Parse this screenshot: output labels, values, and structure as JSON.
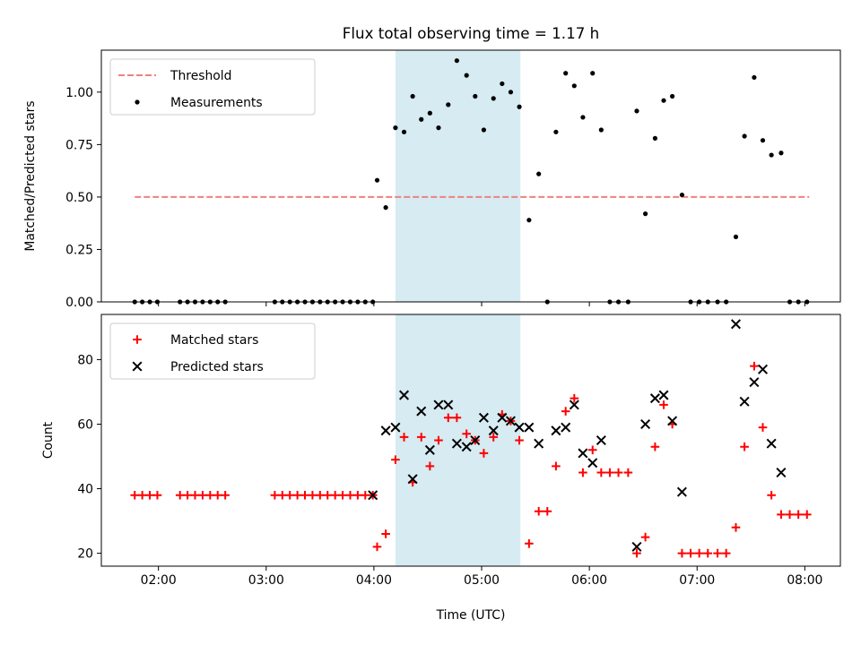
{
  "chart_data": {
    "title": "Flux total observing time = 1.17 h",
    "xlabel": "Time (UTC)",
    "xlim": [
      1.47,
      8.33
    ],
    "x_ticks": [
      {
        "value": 2,
        "label": "02:00"
      },
      {
        "value": 3,
        "label": "03:00"
      },
      {
        "value": 4,
        "label": "04:00"
      },
      {
        "value": 5,
        "label": "05:00"
      },
      {
        "value": 6,
        "label": "06:00"
      },
      {
        "value": 7,
        "label": "07:00"
      },
      {
        "value": 8,
        "label": "08:00"
      }
    ],
    "shaded_region": {
      "x": [
        4.2,
        5.36
      ],
      "color": "#add8e6"
    },
    "panels": [
      {
        "type": "scatter",
        "ylabel": "Matched/Predicted stars",
        "ylim": [
          0,
          1.2
        ],
        "y_ticks": [
          0,
          0.25,
          0.5,
          0.75,
          1.0
        ],
        "y_tick_labels": [
          "0.00",
          "0.25",
          "0.50",
          "0.75",
          "1.00"
        ],
        "legend_position": "upper left",
        "series": [
          {
            "name": "Threshold",
            "kind": "dashed-line",
            "color": "#f08080",
            "x": [
              1.78,
              8.04
            ],
            "y": [
              0.5,
              0.5
            ]
          },
          {
            "name": "Measurements",
            "kind": "dot",
            "color": "#000000",
            "points": [
              [
                1.78,
                0
              ],
              [
                1.85,
                0
              ],
              [
                1.92,
                0
              ],
              [
                1.99,
                0
              ],
              [
                2.2,
                0
              ],
              [
                2.27,
                0
              ],
              [
                2.34,
                0
              ],
              [
                2.41,
                0
              ],
              [
                2.48,
                0
              ],
              [
                2.55,
                0
              ],
              [
                2.62,
                0
              ],
              [
                3.08,
                0
              ],
              [
                3.15,
                0
              ],
              [
                3.22,
                0
              ],
              [
                3.29,
                0
              ],
              [
                3.36,
                0
              ],
              [
                3.43,
                0
              ],
              [
                3.5,
                0
              ],
              [
                3.57,
                0
              ],
              [
                3.64,
                0
              ],
              [
                3.71,
                0
              ],
              [
                3.78,
                0
              ],
              [
                3.85,
                0
              ],
              [
                3.92,
                0
              ],
              [
                3.99,
                0
              ],
              [
                4.03,
                0.58
              ],
              [
                4.11,
                0.45
              ],
              [
                4.2,
                0.83
              ],
              [
                4.28,
                0.81
              ],
              [
                4.36,
                0.98
              ],
              [
                4.44,
                0.87
              ],
              [
                4.52,
                0.9
              ],
              [
                4.6,
                0.83
              ],
              [
                4.69,
                0.94
              ],
              [
                4.77,
                1.15
              ],
              [
                4.86,
                1.08
              ],
              [
                4.94,
                0.98
              ],
              [
                5.02,
                0.82
              ],
              [
                5.11,
                0.97
              ],
              [
                5.19,
                1.04
              ],
              [
                5.27,
                1.0
              ],
              [
                5.35,
                0.93
              ],
              [
                5.44,
                0.39
              ],
              [
                5.53,
                0.61
              ],
              [
                5.61,
                0
              ],
              [
                5.69,
                0.81
              ],
              [
                5.78,
                1.09
              ],
              [
                5.86,
                1.03
              ],
              [
                5.94,
                0.88
              ],
              [
                6.03,
                1.09
              ],
              [
                6.11,
                0.82
              ],
              [
                6.19,
                0
              ],
              [
                6.27,
                0
              ],
              [
                6.36,
                0
              ],
              [
                6.44,
                0.91
              ],
              [
                6.52,
                0.42
              ],
              [
                6.61,
                0.78
              ],
              [
                6.69,
                0.96
              ],
              [
                6.77,
                0.98
              ],
              [
                6.86,
                0.51
              ],
              [
                6.94,
                0
              ],
              [
                7.02,
                0
              ],
              [
                7.1,
                0
              ],
              [
                7.19,
                0
              ],
              [
                7.27,
                0
              ],
              [
                7.36,
                0.31
              ],
              [
                7.44,
                0.79
              ],
              [
                7.53,
                1.07
              ],
              [
                7.61,
                0.77
              ],
              [
                7.69,
                0.7
              ],
              [
                7.78,
                0.71
              ],
              [
                7.86,
                0
              ],
              [
                7.94,
                0
              ],
              [
                8.02,
                0
              ]
            ]
          }
        ]
      },
      {
        "type": "scatter",
        "ylabel": "Count",
        "ylim": [
          16,
          94
        ],
        "y_ticks": [
          20,
          40,
          60,
          80
        ],
        "y_tick_labels": [
          "20",
          "40",
          "60",
          "80"
        ],
        "legend_position": "upper left",
        "series": [
          {
            "name": "Matched stars",
            "kind": "plus",
            "color": "#ff0000",
            "points": [
              [
                1.78,
                38
              ],
              [
                1.85,
                38
              ],
              [
                1.92,
                38
              ],
              [
                1.99,
                38
              ],
              [
                2.2,
                38
              ],
              [
                2.27,
                38
              ],
              [
                2.34,
                38
              ],
              [
                2.41,
                38
              ],
              [
                2.48,
                38
              ],
              [
                2.55,
                38
              ],
              [
                2.62,
                38
              ],
              [
                3.08,
                38
              ],
              [
                3.15,
                38
              ],
              [
                3.22,
                38
              ],
              [
                3.29,
                38
              ],
              [
                3.36,
                38
              ],
              [
                3.43,
                38
              ],
              [
                3.5,
                38
              ],
              [
                3.57,
                38
              ],
              [
                3.64,
                38
              ],
              [
                3.71,
                38
              ],
              [
                3.78,
                38
              ],
              [
                3.85,
                38
              ],
              [
                3.92,
                38
              ],
              [
                3.99,
                38
              ],
              [
                4.03,
                22
              ],
              [
                4.11,
                26
              ],
              [
                4.2,
                49
              ],
              [
                4.28,
                56
              ],
              [
                4.36,
                42
              ],
              [
                4.44,
                56
              ],
              [
                4.52,
                47
              ],
              [
                4.6,
                55
              ],
              [
                4.69,
                62
              ],
              [
                4.77,
                62
              ],
              [
                4.86,
                57
              ],
              [
                4.94,
                55
              ],
              [
                5.02,
                51
              ],
              [
                5.11,
                56
              ],
              [
                5.19,
                63
              ],
              [
                5.27,
                61
              ],
              [
                5.35,
                55
              ],
              [
                5.44,
                23
              ],
              [
                5.53,
                33
              ],
              [
                5.61,
                33
              ],
              [
                5.69,
                47
              ],
              [
                5.78,
                64
              ],
              [
                5.86,
                68
              ],
              [
                5.94,
                45
              ],
              [
                6.03,
                52
              ],
              [
                6.11,
                45
              ],
              [
                6.19,
                45
              ],
              [
                6.27,
                45
              ],
              [
                6.36,
                45
              ],
              [
                6.44,
                20
              ],
              [
                6.52,
                25
              ],
              [
                6.61,
                53
              ],
              [
                6.69,
                66
              ],
              [
                6.77,
                60
              ],
              [
                6.86,
                20
              ],
              [
                6.94,
                20
              ],
              [
                7.02,
                20
              ],
              [
                7.1,
                20
              ],
              [
                7.19,
                20
              ],
              [
                7.27,
                20
              ],
              [
                7.36,
                28
              ],
              [
                7.44,
                53
              ],
              [
                7.53,
                78
              ],
              [
                7.61,
                59
              ],
              [
                7.69,
                38
              ],
              [
                7.78,
                32
              ],
              [
                7.86,
                32
              ],
              [
                7.94,
                32
              ],
              [
                8.02,
                32
              ]
            ]
          },
          {
            "name": "Predicted stars",
            "kind": "x",
            "color": "#000000",
            "points": [
              [
                3.99,
                38
              ],
              [
                4.11,
                58
              ],
              [
                4.2,
                59
              ],
              [
                4.28,
                69
              ],
              [
                4.36,
                43
              ],
              [
                4.44,
                64
              ],
              [
                4.52,
                52
              ],
              [
                4.6,
                66
              ],
              [
                4.69,
                66
              ],
              [
                4.77,
                54
              ],
              [
                4.86,
                53
              ],
              [
                4.94,
                55
              ],
              [
                5.02,
                62
              ],
              [
                5.11,
                58
              ],
              [
                5.19,
                62
              ],
              [
                5.27,
                61
              ],
              [
                5.35,
                59
              ],
              [
                5.44,
                59
              ],
              [
                5.53,
                54
              ],
              [
                5.69,
                58
              ],
              [
                5.78,
                59
              ],
              [
                5.86,
                66
              ],
              [
                5.94,
                51
              ],
              [
                6.03,
                48
              ],
              [
                6.11,
                55
              ],
              [
                6.44,
                22
              ],
              [
                6.52,
                60
              ],
              [
                6.61,
                68
              ],
              [
                6.69,
                69
              ],
              [
                6.77,
                61
              ],
              [
                6.86,
                39
              ],
              [
                7.36,
                91
              ],
              [
                7.44,
                67
              ],
              [
                7.53,
                73
              ],
              [
                7.61,
                77
              ],
              [
                7.69,
                54
              ],
              [
                7.78,
                45
              ]
            ]
          }
        ]
      }
    ]
  }
}
